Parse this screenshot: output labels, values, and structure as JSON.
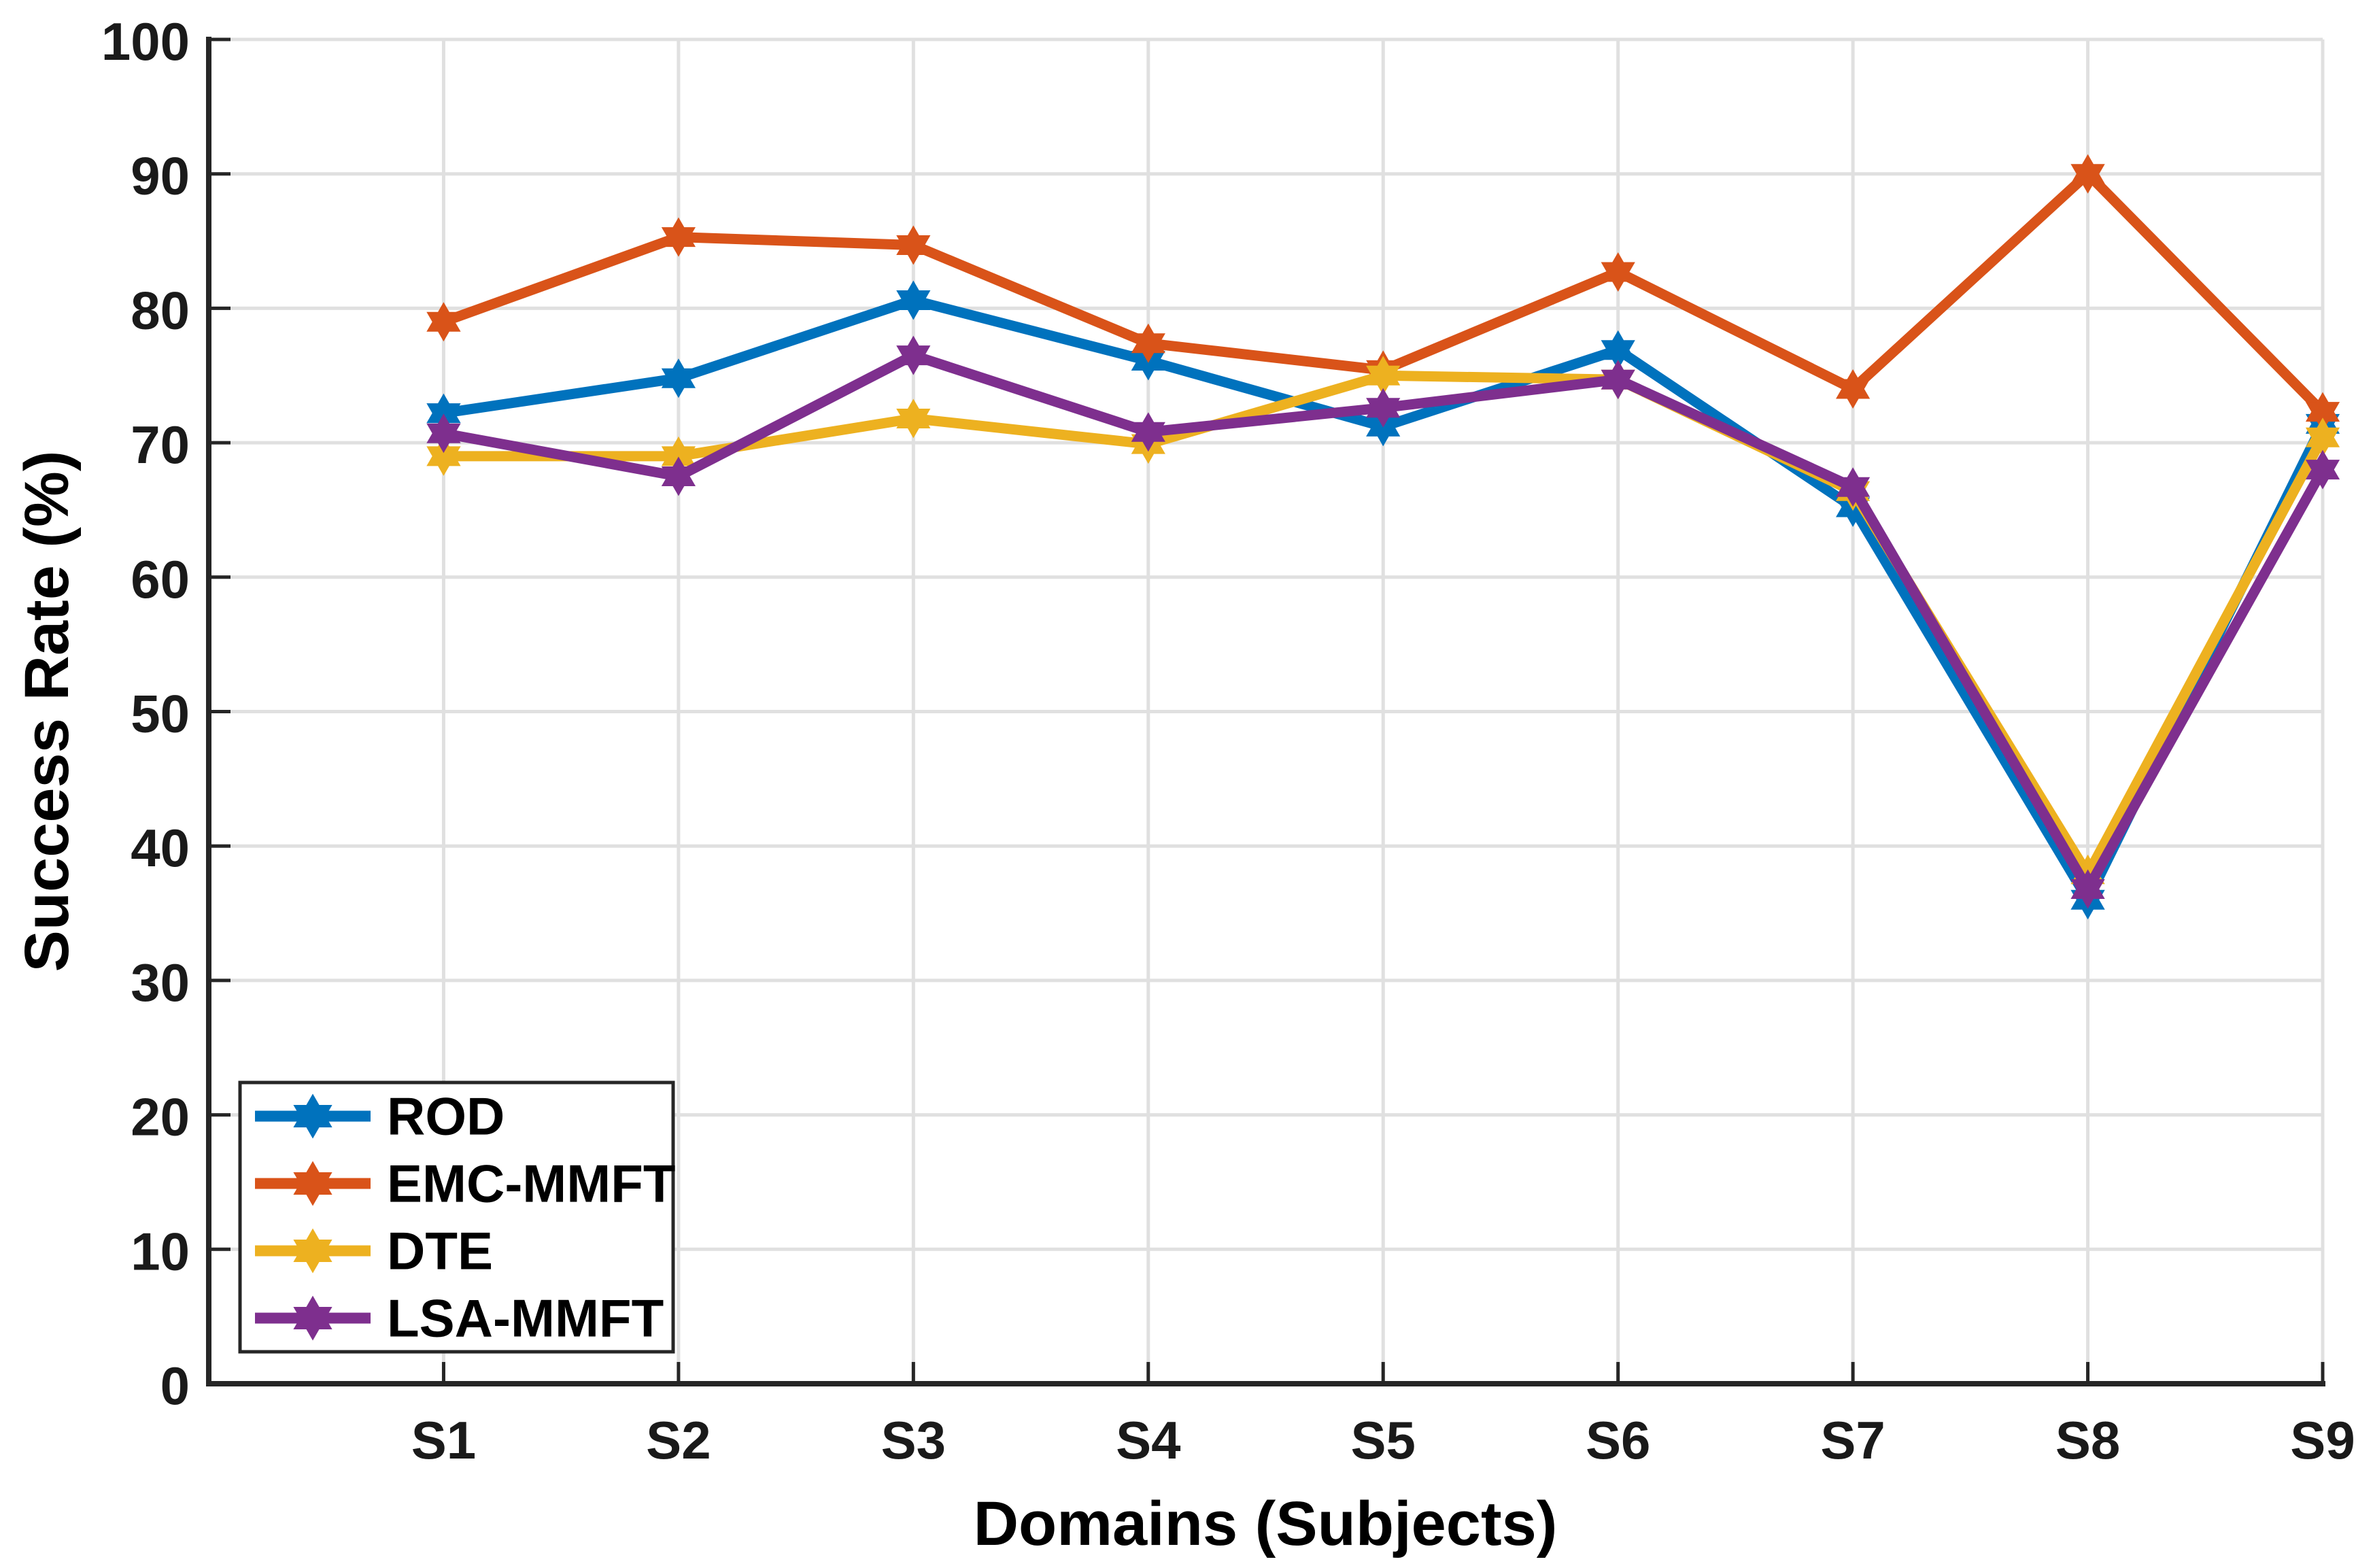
{
  "figure": {
    "background": "#ffffff",
    "axis_color": "#262626",
    "grid_color": "#e0e0e0",
    "tick_text_color": "#1a1a1a",
    "label_text_color": "#000000"
  },
  "chart_data": {
    "type": "line",
    "title": "",
    "xlabel": "Domains (Subjects)",
    "ylabel": "Success Rate (%)",
    "categories": [
      "S1",
      "S2",
      "S3",
      "S4",
      "S5",
      "S6",
      "S7",
      "S8",
      "S9"
    ],
    "ylim": [
      0,
      100
    ],
    "yticks": [
      0,
      10,
      20,
      30,
      40,
      50,
      60,
      70,
      80,
      90,
      100
    ],
    "grid": "on",
    "marker": "hexagram",
    "legend_position": "bottom-left",
    "series": [
      {
        "name": "ROD",
        "color": "#0072BD",
        "values": [
          72.2,
          74.8,
          80.6,
          76.1,
          71.2,
          76.9,
          65.2,
          36.0,
          71.4
        ]
      },
      {
        "name": "EMC-MMFT",
        "color": "#D95319",
        "values": [
          79.0,
          85.3,
          84.7,
          77.4,
          75.4,
          82.7,
          74.0,
          90.0,
          72.3
        ]
      },
      {
        "name": "DTE",
        "color": "#EDB120",
        "values": [
          69.0,
          69.0,
          71.8,
          69.9,
          75.0,
          74.7,
          66.4,
          37.9,
          70.4
        ]
      },
      {
        "name": "LSA-MMFT",
        "color": "#7E2F8E",
        "values": [
          70.7,
          67.5,
          76.5,
          70.8,
          72.6,
          74.7,
          66.7,
          36.8,
          68.0
        ]
      }
    ]
  }
}
